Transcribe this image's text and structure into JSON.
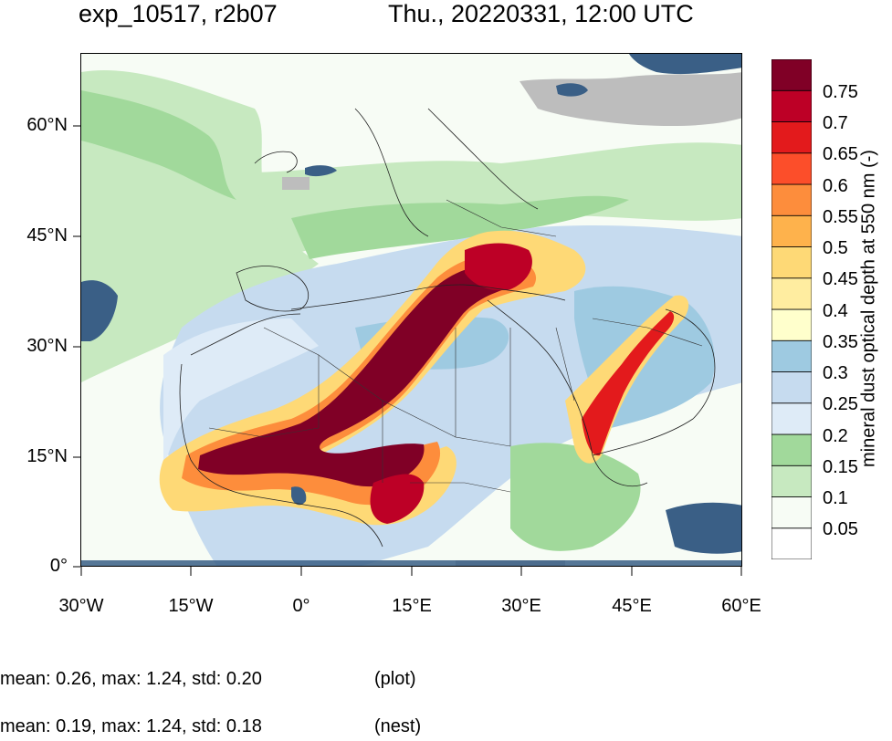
{
  "header": {
    "left_title": "exp_10517, r2b07",
    "right_title": "Thu., 20220331, 12:00 UTC"
  },
  "map": {
    "lat_labels": [
      "60°N",
      "45°N",
      "30°N",
      "15°N",
      "0°"
    ],
    "lon_labels": [
      "30°W",
      "15°W",
      "0°",
      "15°E",
      "30°E",
      "45°E",
      "60°E"
    ],
    "extent": {
      "lon": [
        -30,
        60
      ],
      "lat": [
        0,
        70
      ]
    },
    "colors": {
      "ocean_blue": "#3a5f86",
      "missing_gray": "#bdbdbd",
      "land_low": "#f7fcf5"
    }
  },
  "colorbar": {
    "title": "mineral dust optical depth at 550 nm (-)",
    "labels": [
      "0.75",
      "0.7",
      "0.65",
      "0.6",
      "0.55",
      "0.5",
      "0.45",
      "0.4",
      "0.35",
      "0.3",
      "0.25",
      "0.2",
      "0.15",
      "0.1",
      "0.05"
    ],
    "colors": [
      "#ffffff",
      "#f7fcf5",
      "#c7e9c0",
      "#a1d99b",
      "#deebf7",
      "#c6dbef",
      "#9ecae1",
      "#ffffcc",
      "#ffeda0",
      "#fed976",
      "#feb24c",
      "#fd8d3c",
      "#fc4e2a",
      "#e31a1c",
      "#bd0026",
      "#800026"
    ]
  },
  "stats": {
    "plot_line": "mean: 0.26, max: 1.24, std: 0.20",
    "plot_tag": "(plot)",
    "nest_line": "mean: 0.19, max: 1.24, std: 0.18",
    "nest_tag": "(nest)"
  }
}
